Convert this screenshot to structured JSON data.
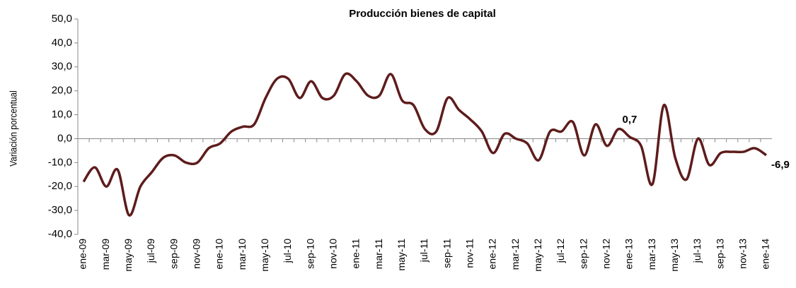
{
  "chart_data": {
    "type": "line",
    "title": "Producción bienes de capital",
    "y_label": "Variación porcentual",
    "categories": [
      "ene-09",
      null,
      "mar-09",
      null,
      "may-09",
      null,
      "jul-09",
      null,
      "sep-09",
      null,
      "nov-09",
      null,
      "ene-10",
      null,
      "mar-10",
      null,
      "may-10",
      null,
      "jul-10",
      null,
      "sep-10",
      null,
      "nov-10",
      null,
      "ene-11",
      null,
      "mar-11",
      null,
      "may-11",
      null,
      "jul-11",
      null,
      "sep-11",
      null,
      "nov-11",
      null,
      "ene-12",
      null,
      "mar-12",
      null,
      "may-12",
      null,
      "jul-12",
      null,
      "sep-12",
      null,
      "nov-12",
      null,
      "ene-13",
      null,
      "mar-13",
      null,
      "may-13",
      null,
      "jul-13",
      null,
      "sep-13",
      null,
      "nov-13",
      null,
      "ene-14"
    ],
    "series": [
      {
        "name": "Producción bienes de capital",
        "color": "#5e1c1c",
        "values": [
          -18,
          -12,
          -20,
          -13,
          -32,
          -20,
          -14,
          -8,
          -7,
          -10,
          -10,
          -4,
          -2,
          3,
          5,
          6,
          17,
          25,
          25,
          17,
          24,
          17,
          18,
          27,
          24,
          18,
          18,
          27,
          16,
          14,
          4,
          3,
          17,
          12,
          8,
          3,
          -6,
          2,
          0,
          -2,
          -9,
          3,
          3,
          7,
          -7,
          6,
          -3,
          4,
          0.7,
          -3,
          -19,
          14,
          -8,
          -17,
          0,
          -11,
          -6,
          -5.5,
          -5.5,
          -4,
          -6.9
        ],
        "value_labels": [
          null,
          null,
          null,
          null,
          null,
          null,
          null,
          null,
          null,
          null,
          null,
          null,
          null,
          null,
          null,
          null,
          null,
          null,
          null,
          null,
          null,
          null,
          null,
          null,
          null,
          null,
          null,
          null,
          null,
          null,
          null,
          null,
          null,
          null,
          null,
          null,
          null,
          null,
          null,
          null,
          null,
          null,
          null,
          null,
          null,
          null,
          null,
          null,
          "0,7",
          null,
          null,
          null,
          null,
          null,
          null,
          null,
          null,
          null,
          null,
          null,
          "-6,9"
        ]
      }
    ],
    "ylim": [
      -40,
      50
    ],
    "yticks": [
      {
        "value": -40,
        "label": "-40,0"
      },
      {
        "value": -30,
        "label": "-30,0"
      },
      {
        "value": -20,
        "label": "-20,0"
      },
      {
        "value": -10,
        "label": "-10,0"
      },
      {
        "value": 0,
        "label": "0,0"
      },
      {
        "value": 10,
        "label": "10,0"
      },
      {
        "value": 20,
        "label": "20,0"
      },
      {
        "value": 30,
        "label": "30,0"
      },
      {
        "value": 40,
        "label": "40,0"
      },
      {
        "value": 50,
        "label": "50,0"
      }
    ],
    "grid": false
  }
}
